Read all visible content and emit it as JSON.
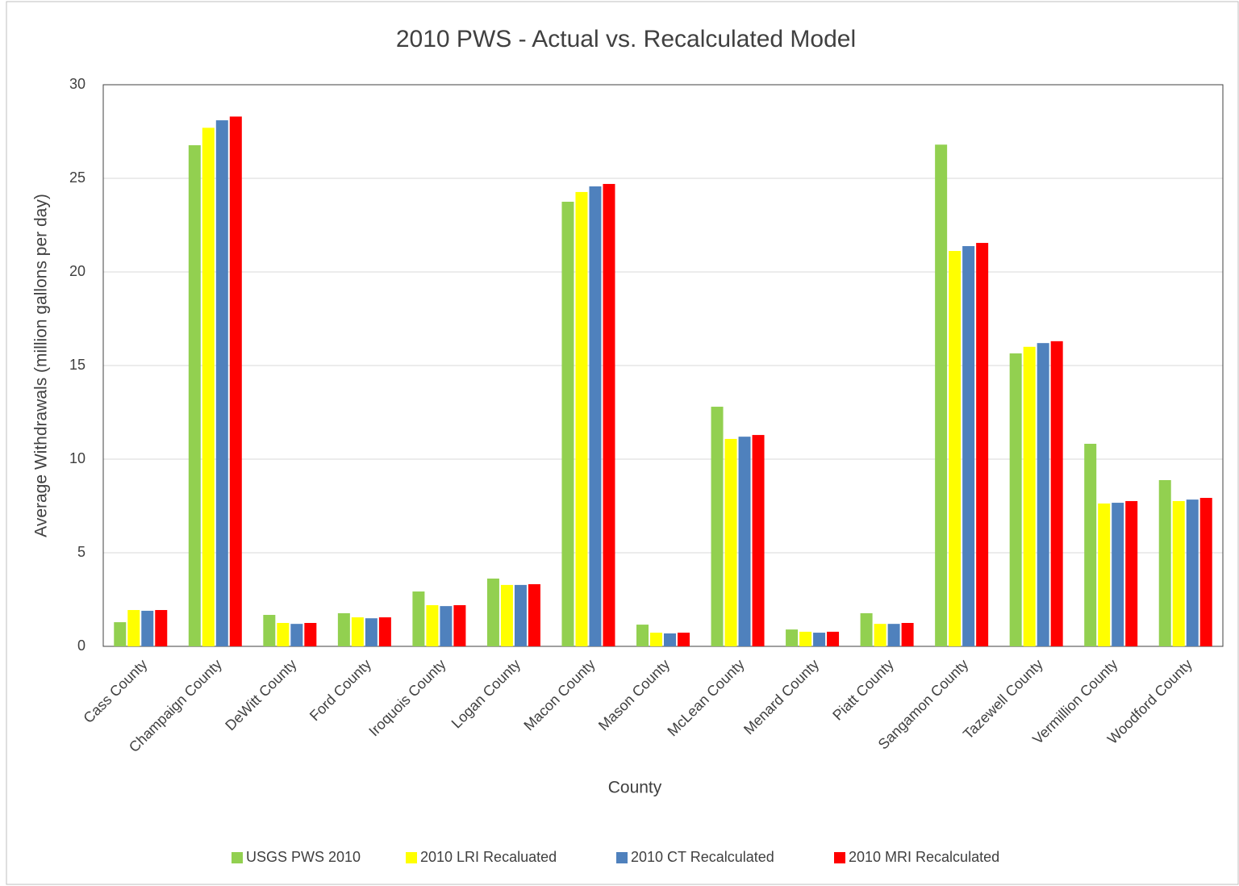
{
  "chart_data": {
    "type": "bar",
    "title": "2010 PWS - Actual vs. Recalculated Model",
    "x_label": "County",
    "y_label": "Average Withdrawals (million gallons per day)",
    "categories": [
      "Cass County",
      "Champaign County",
      "DeWitt County",
      "Ford County",
      "Iroquois County",
      "Logan County",
      "Macon County",
      "Mason County",
      "McLean County",
      "Menard County",
      "Piatt County",
      "Sangamon County",
      "Tazewell County",
      "Vermillion County",
      "Woodford County"
    ],
    "series": [
      {
        "name": "USGS PWS 2010",
        "color": "#92d050",
        "values": [
          1.29,
          26.77,
          1.68,
          1.77,
          2.93,
          3.62,
          23.75,
          1.16,
          12.8,
          0.9,
          1.77,
          26.8,
          15.65,
          10.82,
          8.88
        ]
      },
      {
        "name": "2010 LRI Recaluated",
        "color": "#ffff00",
        "values": [
          1.94,
          27.7,
          1.25,
          1.55,
          2.2,
          3.28,
          24.27,
          0.73,
          11.08,
          0.78,
          1.2,
          21.12,
          16.0,
          7.63,
          7.76
        ]
      },
      {
        "name": "2010 CT Recalculated",
        "color": "#4f81bd",
        "values": [
          1.9,
          28.1,
          1.2,
          1.5,
          2.15,
          3.28,
          24.57,
          0.69,
          11.2,
          0.73,
          1.2,
          21.38,
          16.2,
          7.67,
          7.84
        ]
      },
      {
        "name": "2010 MRI Recalculated",
        "color": "#ff0000",
        "values": [
          1.94,
          28.3,
          1.25,
          1.55,
          2.2,
          3.32,
          24.7,
          0.73,
          11.29,
          0.78,
          1.25,
          21.55,
          16.3,
          7.76,
          7.93
        ]
      }
    ],
    "ylim": [
      0,
      30
    ],
    "yticks": [
      0,
      5,
      10,
      15,
      20,
      25,
      30
    ],
    "grid": true,
    "legend": "bottom"
  }
}
